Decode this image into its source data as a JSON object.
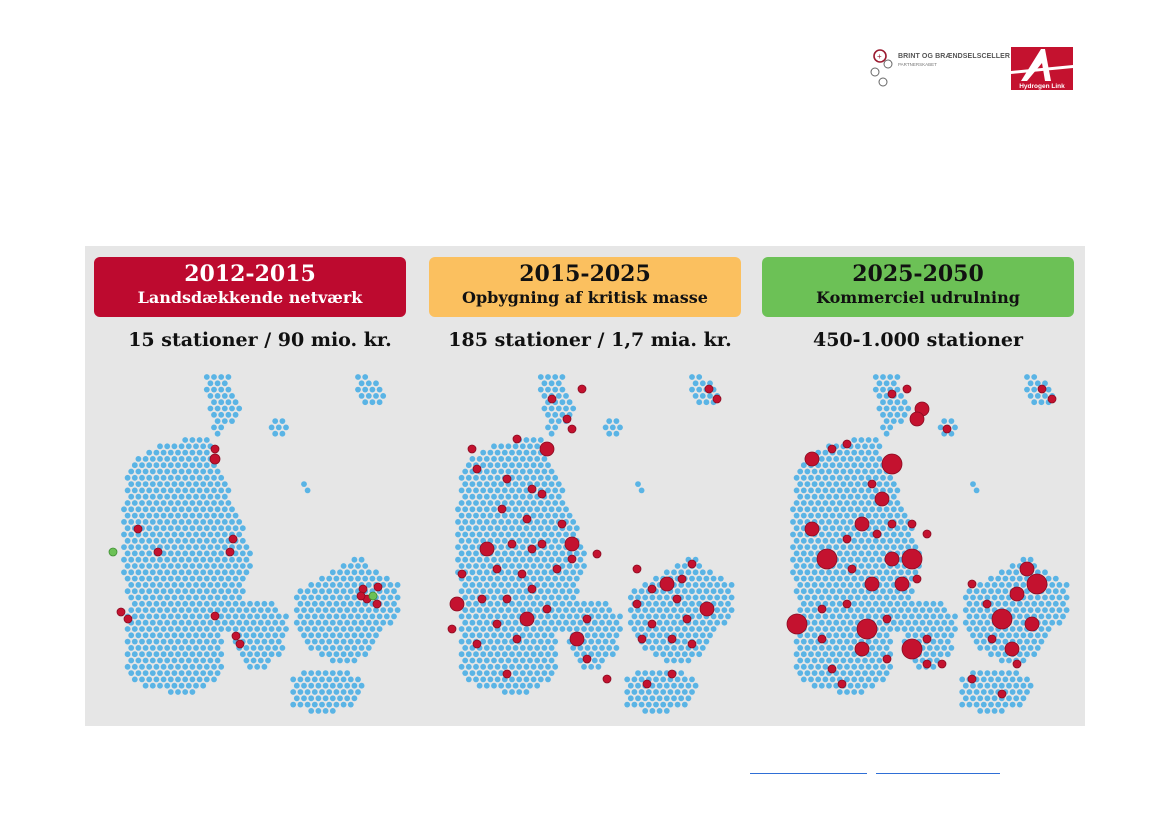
{
  "logos": {
    "brint_name": "BRINT OG BRÆNDSELSCELLER",
    "brint_sub": "PARTNERSKABET",
    "hydrogen_link": "Hydrogen Link"
  },
  "phases": [
    {
      "years": "2012-2015",
      "name": "Landsdækkende netværk",
      "stations": "15 stationer / 90 mio. kr.",
      "color": "#bd0a2f"
    },
    {
      "years": "2015-2025",
      "name": "Opbygning af kritisk masse",
      "stations": "185 stationer / 1,7 mia. kr.",
      "color": "#fbc05f"
    },
    {
      "years": "2025-2050",
      "name": "Kommerciel udrulning",
      "stations": "450-1.000 stationer",
      "color": "#6cc156"
    }
  ],
  "map_colors": {
    "land_dot": "#5ab4e5",
    "station": "#c4122f",
    "green_station": "#6cc156"
  }
}
